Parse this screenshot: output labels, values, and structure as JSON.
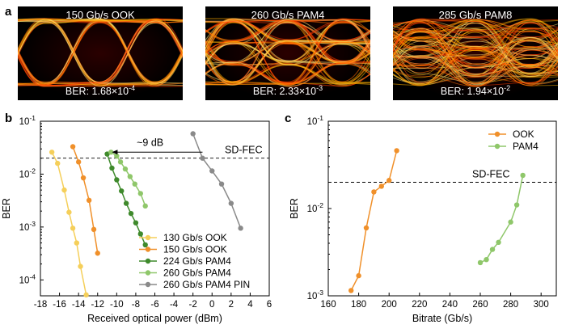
{
  "panels": {
    "a": "a",
    "b": "b",
    "c": "c"
  },
  "eyes": [
    {
      "title": "150 Gb/s OOK",
      "ber_mant": "1.68",
      "ber_exp": "-4",
      "ber_prefix": "BER: ",
      "levels": 2
    },
    {
      "title": "260 Gb/s PAM4",
      "ber_mant": "2.33",
      "ber_exp": "-3",
      "ber_prefix": "BER: ",
      "levels": 4
    },
    {
      "title": "285 Gb/s PAM8",
      "ber_mant": "1.94",
      "ber_exp": "-2",
      "ber_prefix": "BER: ",
      "levels": 8
    }
  ],
  "chart_data": [
    {
      "type": "line",
      "panel": "b",
      "xlabel": "Received optical power (dBm)",
      "ylabel": "BER",
      "xlim": [
        -18,
        6
      ],
      "ylim": [
        5e-05,
        0.1
      ],
      "yscale": "log",
      "xticks": [
        -18,
        -16,
        -14,
        -12,
        -10,
        -8,
        -6,
        -4,
        -2,
        0,
        2,
        4,
        6
      ],
      "yticks": [
        {
          "value": 0.1,
          "label": "10",
          "exp": "-1"
        },
        {
          "value": 0.01,
          "label": "10",
          "exp": "-2"
        },
        {
          "value": 0.001,
          "label": "10",
          "exp": "-3"
        },
        {
          "value": 0.0001,
          "label": "10",
          "exp": "-4"
        }
      ],
      "threshold": {
        "value": 0.02,
        "label": "SD-FEC"
      },
      "annotation": {
        "text": "~9 dB",
        "from_x": -1.0,
        "to_x": -10.5,
        "y": 0.026
      },
      "legend_position": "bottom-right",
      "series": [
        {
          "name": "130 Gb/s OOK",
          "color": "#f5cf5a",
          "x": [
            -16.8,
            -16.2,
            -15.5,
            -15.0,
            -14.6,
            -14.2,
            -13.8,
            -13.2
          ],
          "y": [
            0.026,
            0.016,
            0.005,
            0.0019,
            0.00095,
            0.0005,
            0.00018,
            5.2e-05
          ]
        },
        {
          "name": "150 Gb/s OOK",
          "color": "#f0902a",
          "x": [
            -14.6,
            -14.0,
            -13.5,
            -12.9,
            -12.4,
            -12.0
          ],
          "y": [
            0.033,
            0.017,
            0.0085,
            0.0032,
            0.0009,
            0.00032
          ]
        },
        {
          "name": "224 Gb/s PAM4",
          "color": "#3f8a2c",
          "x": [
            -11.0,
            -10.5,
            -10.0,
            -9.5,
            -9.0,
            -8.5,
            -8.0,
            -7.5,
            -7.0
          ],
          "y": [
            0.024,
            0.013,
            0.0078,
            0.0048,
            0.0028,
            0.0018,
            0.0012,
            0.00074,
            0.00046
          ]
        },
        {
          "name": "260 Gb/s PAM4",
          "color": "#8fc76a",
          "x": [
            -10.6,
            -10.0,
            -9.6,
            -9.1,
            -8.6,
            -8.1,
            -7.5,
            -7.0
          ],
          "y": [
            0.026,
            0.022,
            0.017,
            0.0125,
            0.009,
            0.0065,
            0.0043,
            0.0025
          ]
        },
        {
          "name": "260 Gb/s PAM4 PIN",
          "color": "#8a8a8a",
          "x": [
            -2.0,
            -1.0,
            0.0,
            1.0,
            2.0,
            3.0
          ],
          "y": [
            0.058,
            0.02,
            0.0115,
            0.0065,
            0.0028,
            0.00095
          ]
        }
      ]
    },
    {
      "type": "line",
      "panel": "c",
      "xlabel": "Bitrate (Gb/s)",
      "ylabel": "BER",
      "xlim": [
        160,
        310
      ],
      "ylim": [
        0.001,
        0.1
      ],
      "yscale": "log",
      "xticks": [
        160,
        180,
        200,
        220,
        240,
        260,
        280,
        300
      ],
      "yticks": [
        {
          "value": 0.1,
          "label": "10",
          "exp": "-1"
        },
        {
          "value": 0.01,
          "label": "10",
          "exp": "-2"
        },
        {
          "value": 0.001,
          "label": "10",
          "exp": "-3"
        }
      ],
      "threshold": {
        "value": 0.02,
        "label": "SD-FEC"
      },
      "legend_position": "top-right",
      "series": [
        {
          "name": "OOK",
          "color": "#f0902a",
          "x": [
            175,
            180,
            185,
            190,
            195,
            200,
            205
          ],
          "y": [
            0.00115,
            0.0017,
            0.006,
            0.0155,
            0.018,
            0.021,
            0.046
          ]
        },
        {
          "name": "PAM4",
          "color": "#8fc76a",
          "x": [
            260,
            264,
            268,
            272,
            280,
            284,
            288
          ],
          "y": [
            0.0024,
            0.0026,
            0.0034,
            0.0041,
            0.007,
            0.011,
            0.024
          ]
        }
      ]
    }
  ]
}
